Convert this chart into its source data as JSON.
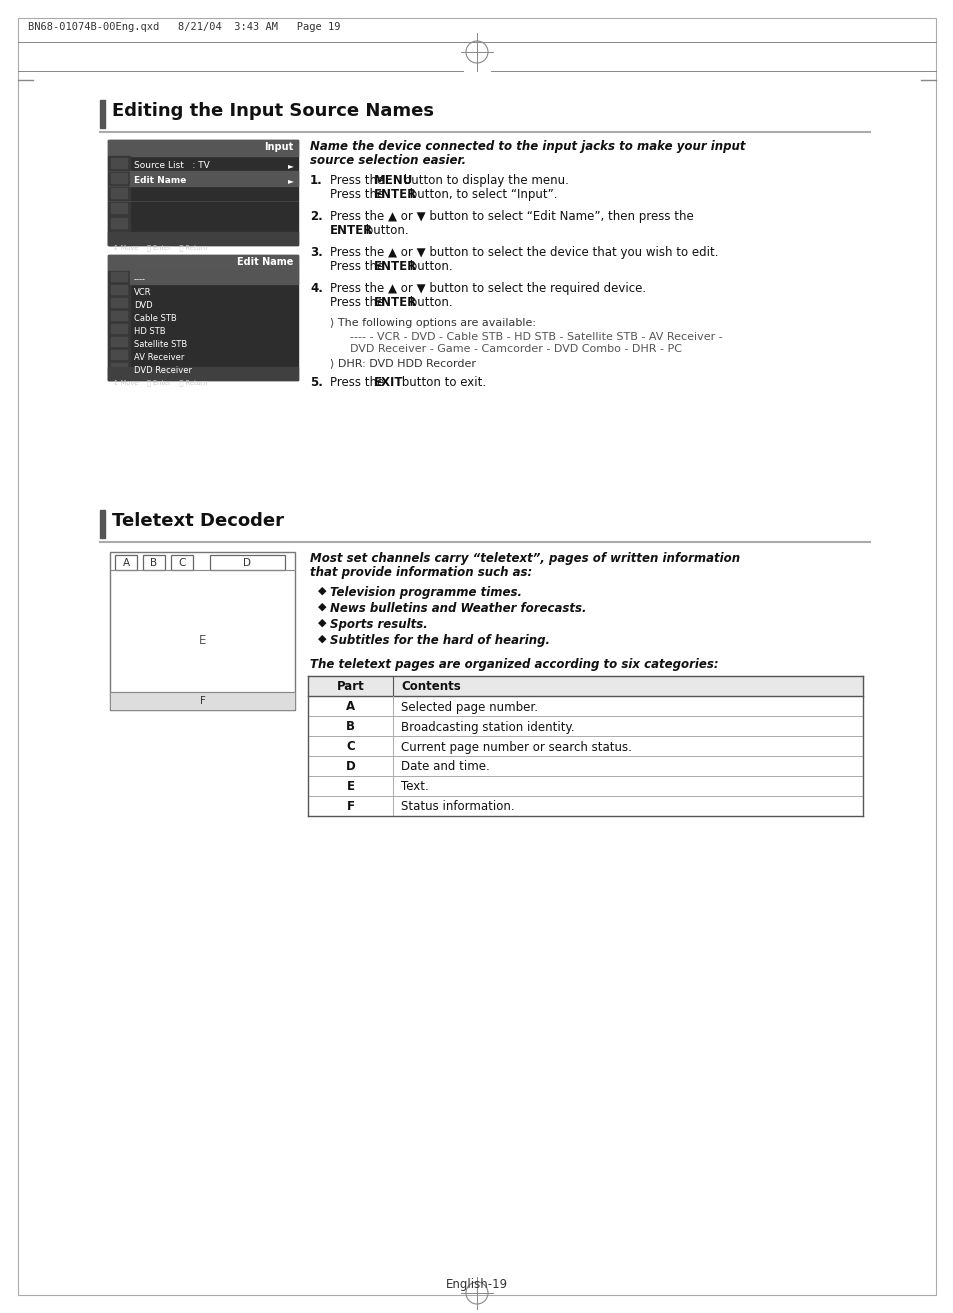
{
  "page_header": "BN68-01074B-00Eng.qxd   8/21/04  3:43 AM   Page 19",
  "footer_text": "English-19",
  "bg_color": "#ffffff",
  "section1_title": "Editing the Input Source Names",
  "section2_title": "Teletext Decoder",
  "section2_intro_line1": "Most set channels carry “teletext”, pages of written information",
  "section2_intro_line2": "that provide information such as:",
  "section2_bullets": [
    "Television programme times.",
    "News bulletins and Weather forecasts.",
    "Sports results.",
    "Subtitles for the hard of hearing."
  ],
  "section2_table_intro": "The teletext pages are organized according to six categories:",
  "table_headers": [
    "Part",
    "Contents"
  ],
  "table_rows": [
    [
      "A",
      "Selected page number."
    ],
    [
      "B",
      "Broadcasting station identity."
    ],
    [
      "C",
      "Current page number or search status."
    ],
    [
      "D",
      "Date and time."
    ],
    [
      "E",
      "Text."
    ],
    [
      "F",
      "Status information."
    ]
  ],
  "menu_screen1_title": "Input",
  "menu_screen1_items": [
    "Source List   : TV",
    "Edit Name"
  ],
  "menu_screen2_title": "Edit Name",
  "menu_screen2_items": [
    "----",
    "VCR",
    "DVD",
    "Cable STB",
    "HD STB",
    "Satellite STB",
    "AV Receiver",
    "DVD Receiver"
  ],
  "teletext_labels": [
    "A",
    "B",
    "C",
    "D",
    "E",
    "F"
  ]
}
